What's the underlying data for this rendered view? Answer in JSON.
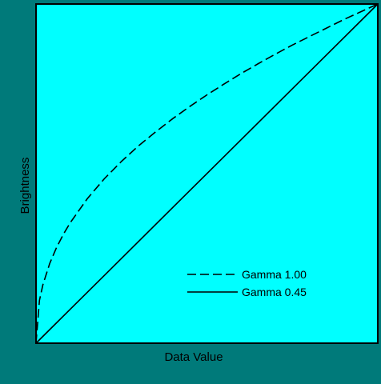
{
  "chart_data": {
    "type": "line",
    "title": "",
    "xlabel": "Data Value",
    "ylabel": "Brightness",
    "xlim": [
      0,
      1
    ],
    "ylim": [
      0,
      1
    ],
    "grid": false,
    "legend_position": "bottom-right",
    "series": [
      {
        "name": "Gamma 1.00",
        "style": "dashed",
        "x": [
          0,
          0.01,
          0.02,
          0.04,
          0.06,
          0.08,
          0.1,
          0.15,
          0.2,
          0.25,
          0.3,
          0.35,
          0.4,
          0.45,
          0.5,
          0.55,
          0.6,
          0.65,
          0.7,
          0.75,
          0.8,
          0.85,
          0.9,
          0.95,
          1.0
        ],
        "y": [
          0,
          0.126,
          0.172,
          0.235,
          0.282,
          0.321,
          0.355,
          0.426,
          0.485,
          0.536,
          0.582,
          0.623,
          0.662,
          0.698,
          0.732,
          0.764,
          0.795,
          0.824,
          0.852,
          0.879,
          0.904,
          0.929,
          0.954,
          0.977,
          1.0
        ]
      },
      {
        "name": "Gamma 0.45",
        "style": "solid",
        "x": [
          0,
          1
        ],
        "y": [
          0,
          1
        ]
      }
    ]
  },
  "colors": {
    "background": "#007a7a",
    "plot_area": "#00ffff",
    "line": "#000000"
  }
}
